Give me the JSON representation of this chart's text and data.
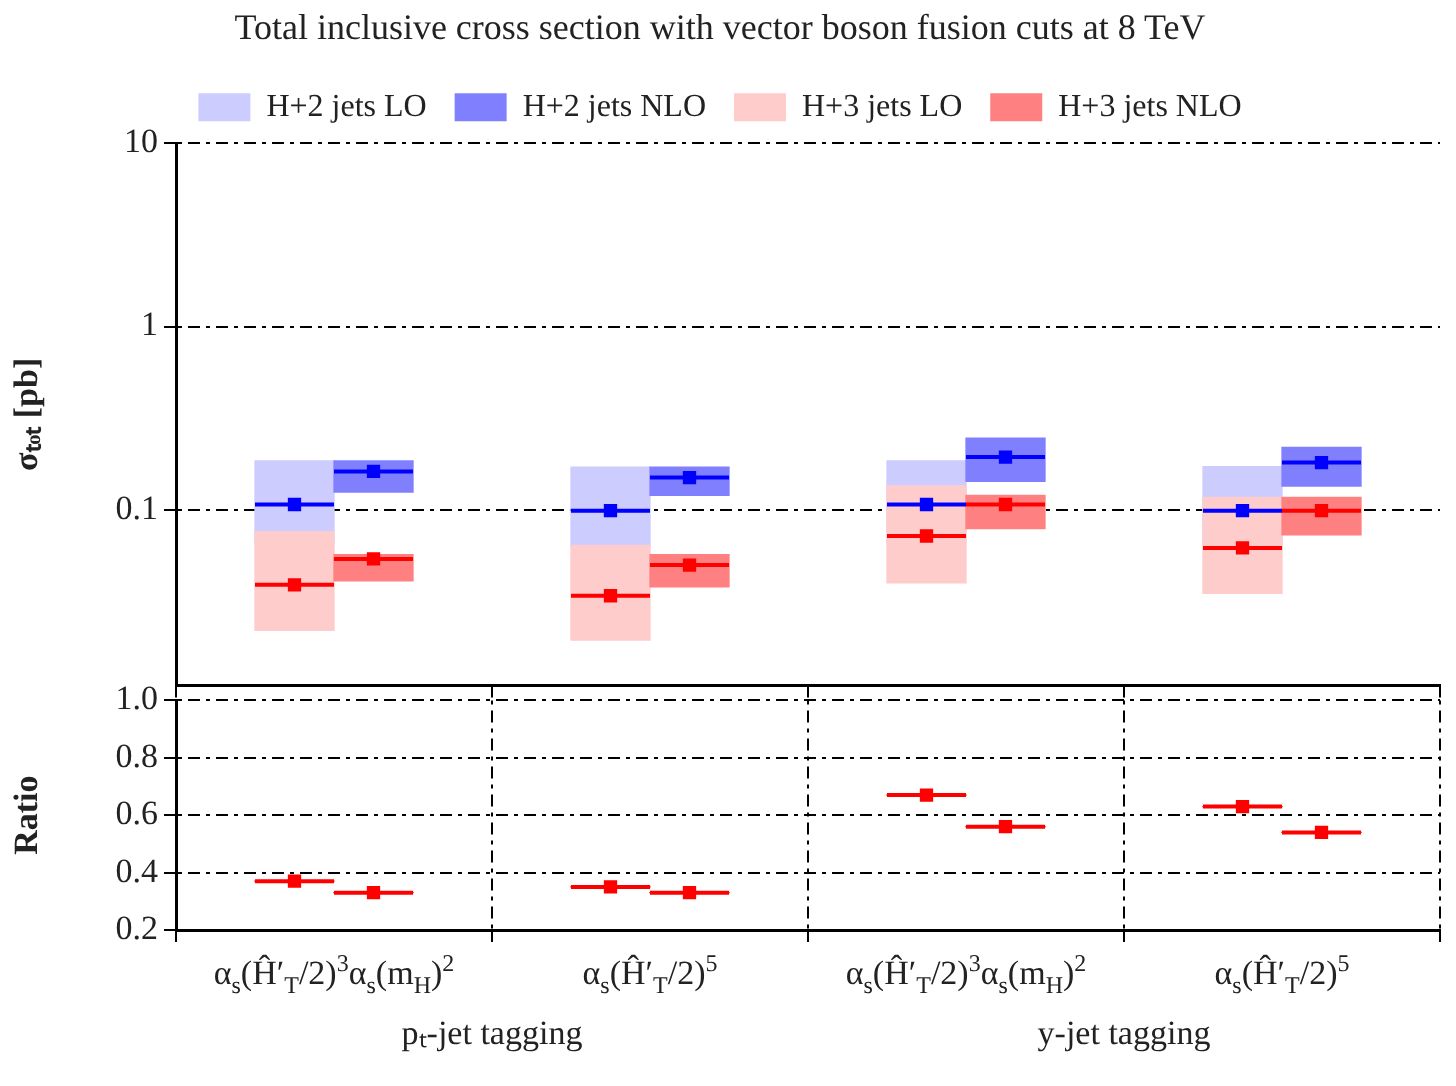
{
  "chart_data": [
    {
      "type": "box",
      "title": "Total inclusive cross section with vector boson fusion cuts at 8 TeV",
      "ylabel": "σₜₒₜ [pb]",
      "categories": [
        null,
        null,
        null,
        null
      ],
      "series": [
        {
          "name": "H+2 jets LO",
          "color": "#ccccff",
          "boxes": [
            {
              "low": 0.065,
              "q1": 0.065,
              "median": 0.107,
              "q3": 0.185,
              "high": 0.185,
              "mean": 0.107
            },
            {
              "low": 0.063,
              "q1": 0.063,
              "median": 0.099,
              "q3": 0.171,
              "high": 0.171,
              "mean": 0.099
            },
            {
              "low": 0.066,
              "q1": 0.066,
              "median": 0.107,
              "q3": 0.185,
              "high": 0.185,
              "mean": 0.107
            },
            {
              "low": 0.062,
              "q1": 0.062,
              "median": 0.099,
              "q3": 0.172,
              "high": 0.172,
              "mean": 0.099
            }
          ]
        },
        {
          "name": "H+2 jets NLO",
          "color": "#8080ff",
          "boxes": [
            {
              "low": 0.125,
              "q1": 0.125,
              "median": 0.162,
              "q3": 0.185,
              "high": 0.185,
              "mean": 0.162
            },
            {
              "low": 0.12,
              "q1": 0.12,
              "median": 0.15,
              "q3": 0.171,
              "high": 0.171,
              "mean": 0.15
            },
            {
              "low": 0.143,
              "q1": 0.143,
              "median": 0.194,
              "q3": 0.246,
              "high": 0.246,
              "mean": 0.194
            },
            {
              "low": 0.135,
              "q1": 0.135,
              "median": 0.181,
              "q3": 0.219,
              "high": 0.219,
              "mean": 0.181
            }
          ]
        },
        {
          "name": "H+3 jets LO",
          "color": "#ffcccc",
          "boxes": [
            {
              "low": 0.022,
              "q1": 0.022,
              "median": 0.039,
              "q3": 0.076,
              "high": 0.076,
              "mean": 0.039
            },
            {
              "low": 0.0195,
              "q1": 0.0195,
              "median": 0.034,
              "q3": 0.064,
              "high": 0.064,
              "mean": 0.034
            },
            {
              "low": 0.04,
              "q1": 0.04,
              "median": 0.072,
              "q3": 0.135,
              "high": 0.135,
              "mean": 0.072
            },
            {
              "low": 0.035,
              "q1": 0.035,
              "median": 0.062,
              "q3": 0.117,
              "high": 0.117,
              "mean": 0.062
            }
          ]
        },
        {
          "name": "H+3 jets NLO",
          "color": "#ff8080",
          "boxes": [
            {
              "low": 0.041,
              "q1": 0.041,
              "median": 0.054,
              "q3": 0.057,
              "high": 0.057,
              "mean": 0.054
            },
            {
              "low": 0.038,
              "q1": 0.038,
              "median": 0.05,
              "q3": 0.057,
              "high": 0.057,
              "mean": 0.05
            },
            {
              "low": 0.079,
              "q1": 0.079,
              "median": 0.107,
              "q3": 0.12,
              "high": 0.12,
              "mean": 0.107
            },
            {
              "low": 0.073,
              "q1": 0.073,
              "median": 0.099,
              "q3": 0.117,
              "high": 0.117,
              "mean": 0.099
            }
          ]
        }
      ],
      "log": true,
      "ylim": [
        0.011,
        10
      ],
      "yticks": [
        0.1,
        1,
        10
      ],
      "grid": "y",
      "legend": "top",
      "marker": "square",
      "tick_labels": "y"
    },
    {
      "type": "box",
      "ylabel": "Ratio",
      "categories": [
        "α$_{s}$(Ĥ′$_{T}$/2)$^{3}$α$_{s}$(m$_{H}$)$^{2}$",
        "α$_{s}$(Ĥ′$_{T}$/2)$^{5}$",
        "α$_{s}$(Ĥ′$_{T}$/2)$^{3}$α$_{s}$(m$_{H}$)$^{2}$",
        "α$_{s}$(Ĥ′$_{T}$/2)$^{5}$"
      ],
      "series": [
        {
          "color": "#ff0000",
          "boxes": [
            {
              "low": 0.37,
              "q1": 0.37,
              "median": 0.37,
              "q3": 0.37,
              "high": 0.37,
              "mean": 0.37
            },
            {
              "low": 0.35,
              "q1": 0.35,
              "median": 0.35,
              "q3": 0.35,
              "high": 0.35,
              "mean": 0.35
            },
            {
              "low": 0.67,
              "q1": 0.67,
              "median": 0.67,
              "q3": 0.67,
              "high": 0.67,
              "mean": 0.67
            },
            {
              "low": 0.63,
              "q1": 0.63,
              "median": 0.63,
              "q3": 0.63,
              "high": 0.63,
              "mean": 0.63
            }
          ]
        },
        {
          "color": "#ff0000",
          "boxes": [
            {
              "low": 0.33,
              "q1": 0.33,
              "median": 0.33,
              "q3": 0.33,
              "high": 0.33,
              "mean": 0.33
            },
            {
              "low": 0.33,
              "q1": 0.33,
              "median": 0.33,
              "q3": 0.33,
              "high": 0.33,
              "mean": 0.33
            },
            {
              "low": 0.56,
              "q1": 0.56,
              "median": 0.56,
              "q3": 0.56,
              "high": 0.56,
              "mean": 0.56
            },
            {
              "low": 0.54,
              "q1": 0.54,
              "median": 0.54,
              "q3": 0.54,
              "high": 0.54,
              "mean": 0.54
            }
          ]
        }
      ],
      "ylim": [
        0.2,
        1.0
      ],
      "yticks": [
        0.2,
        0.4,
        0.6,
        0.8,
        {
          "value": 1.0,
          "label": "1.0"
        }
      ],
      "grid": true,
      "marker": "square",
      "annotations": [
        "pₜ-jet tagging",
        "y-jet tagging"
      ]
    }
  ]
}
